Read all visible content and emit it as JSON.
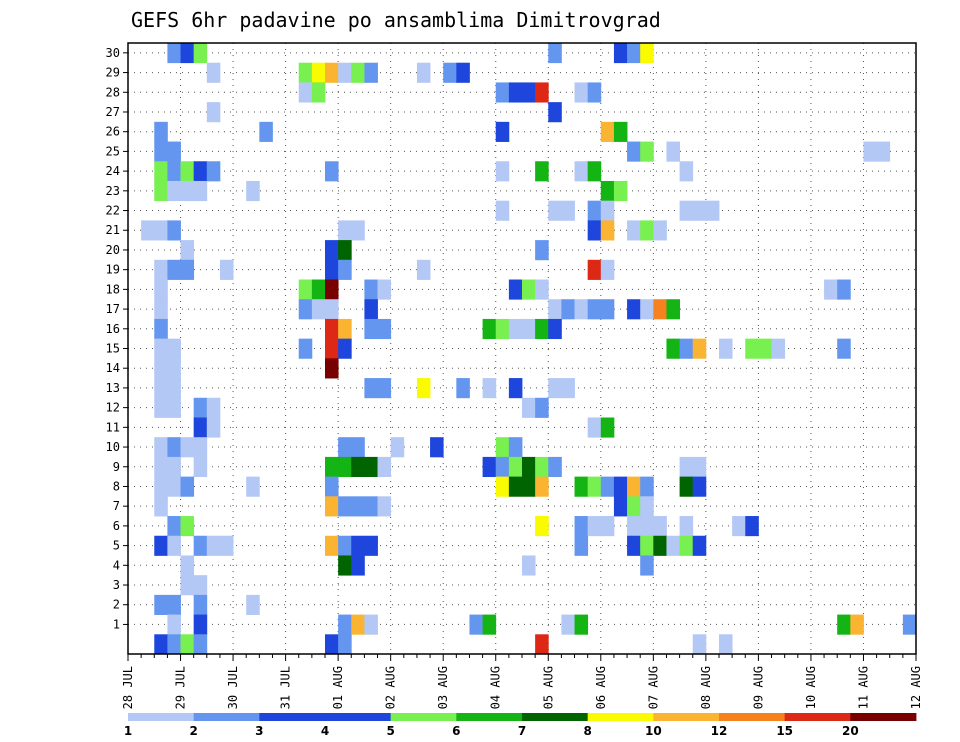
{
  "chart_data": {
    "type": "heatmap",
    "title": "GEFS 6hr padavine po ansamblima Dimitrovgrad",
    "xlabel": "",
    "ylabel": "",
    "x_tick_labels": [
      "28 JUL",
      "29 JUL",
      "30 JUL",
      "31 JUL",
      "01 AUG",
      "02 AUG",
      "03 AUG",
      "04 AUG",
      "05 AUG",
      "06 AUG",
      "07 AUG",
      "08 AUG",
      "09 AUG",
      "10 AUG",
      "11 AUG",
      "12 AUG"
    ],
    "y_tick_labels": [
      "1",
      "2",
      "3",
      "4",
      "5",
      "6",
      "7",
      "8",
      "9",
      "10",
      "11",
      "12",
      "13",
      "14",
      "15",
      "16",
      "17",
      "18",
      "19",
      "20",
      "21",
      "22",
      "23",
      "24",
      "25",
      "26",
      "27",
      "28",
      "29",
      "30"
    ],
    "x_range_steps": [
      0,
      60
    ],
    "y_range_members": [
      0,
      30
    ],
    "grid": true,
    "legend": {
      "placement": "bottom",
      "labels": [
        "1",
        "2",
        "3",
        "4",
        "5",
        "6",
        "7",
        "8",
        "10",
        "12",
        "15",
        "20"
      ],
      "colors": [
        "#b4c8f5",
        "#6496f0",
        "#1e46dc",
        "#1e46dc",
        "#78f050",
        "#14b414",
        "#006400",
        "#fafa00",
        "#fab432",
        "#f5821e",
        "#dc2814",
        "#780000"
      ]
    },
    "cells": [
      {
        "m": 30,
        "t": 3,
        "c": 2
      },
      {
        "m": 30,
        "t": 4,
        "c": 4
      },
      {
        "m": 30,
        "t": 5,
        "c": 5
      },
      {
        "m": 30,
        "t": 32,
        "c": 2
      },
      {
        "m": 30,
        "t": 37,
        "c": 4
      },
      {
        "m": 30,
        "t": 38,
        "c": 2
      },
      {
        "m": 30,
        "t": 39,
        "c": 8
      },
      {
        "m": 29,
        "t": 6,
        "c": 1
      },
      {
        "m": 29,
        "t": 13,
        "c": 5
      },
      {
        "m": 29,
        "t": 14,
        "c": 8
      },
      {
        "m": 29,
        "t": 15,
        "c": 10
      },
      {
        "m": 29,
        "t": 16,
        "c": 1
      },
      {
        "m": 29,
        "t": 17,
        "c": 5
      },
      {
        "m": 29,
        "t": 18,
        "c": 2
      },
      {
        "m": 29,
        "t": 22,
        "c": 1
      },
      {
        "m": 29,
        "t": 24,
        "c": 2
      },
      {
        "m": 29,
        "t": 25,
        "c": 4
      },
      {
        "m": 28,
        "t": 13,
        "c": 1
      },
      {
        "m": 28,
        "t": 14,
        "c": 5
      },
      {
        "m": 28,
        "t": 28,
        "c": 2
      },
      {
        "m": 28,
        "t": 29,
        "c": 4
      },
      {
        "m": 28,
        "t": 30,
        "c": 4
      },
      {
        "m": 28,
        "t": 31,
        "c": 15
      },
      {
        "m": 28,
        "t": 34,
        "c": 1
      },
      {
        "m": 28,
        "t": 35,
        "c": 2
      },
      {
        "m": 27,
        "t": 6,
        "c": 1
      },
      {
        "m": 27,
        "t": 32,
        "c": 4
      },
      {
        "m": 26,
        "t": 2,
        "c": 2
      },
      {
        "m": 26,
        "t": 10,
        "c": 2
      },
      {
        "m": 26,
        "t": 28,
        "c": 4
      },
      {
        "m": 26,
        "t": 36,
        "c": 10
      },
      {
        "m": 26,
        "t": 37,
        "c": 6
      },
      {
        "m": 25,
        "t": 2,
        "c": 2
      },
      {
        "m": 25,
        "t": 3,
        "c": 2
      },
      {
        "m": 25,
        "t": 38,
        "c": 2
      },
      {
        "m": 25,
        "t": 39,
        "c": 5
      },
      {
        "m": 25,
        "t": 41,
        "c": 1
      },
      {
        "m": 25,
        "t": 56,
        "c": 1
      },
      {
        "m": 25,
        "t": 57,
        "c": 1
      },
      {
        "m": 24,
        "t": 2,
        "c": 5
      },
      {
        "m": 24,
        "t": 3,
        "c": 2
      },
      {
        "m": 24,
        "t": 4,
        "c": 5
      },
      {
        "m": 24,
        "t": 5,
        "c": 4
      },
      {
        "m": 24,
        "t": 6,
        "c": 2
      },
      {
        "m": 24,
        "t": 15,
        "c": 2
      },
      {
        "m": 24,
        "t": 28,
        "c": 1
      },
      {
        "m": 24,
        "t": 31,
        "c": 6
      },
      {
        "m": 24,
        "t": 34,
        "c": 1
      },
      {
        "m": 24,
        "t": 35,
        "c": 6
      },
      {
        "m": 24,
        "t": 42,
        "c": 1
      },
      {
        "m": 23,
        "t": 2,
        "c": 5
      },
      {
        "m": 23,
        "t": 3,
        "c": 1
      },
      {
        "m": 23,
        "t": 4,
        "c": 1
      },
      {
        "m": 23,
        "t": 5,
        "c": 1
      },
      {
        "m": 23,
        "t": 9,
        "c": 1
      },
      {
        "m": 23,
        "t": 36,
        "c": 6
      },
      {
        "m": 23,
        "t": 37,
        "c": 5
      },
      {
        "m": 22,
        "t": 28,
        "c": 1
      },
      {
        "m": 22,
        "t": 32,
        "c": 1
      },
      {
        "m": 22,
        "t": 33,
        "c": 1
      },
      {
        "m": 22,
        "t": 35,
        "c": 2
      },
      {
        "m": 22,
        "t": 36,
        "c": 1
      },
      {
        "m": 22,
        "t": 42,
        "c": 1
      },
      {
        "m": 22,
        "t": 43,
        "c": 1
      },
      {
        "m": 22,
        "t": 44,
        "c": 1
      },
      {
        "m": 21,
        "t": 1,
        "c": 1
      },
      {
        "m": 21,
        "t": 2,
        "c": 1
      },
      {
        "m": 21,
        "t": 3,
        "c": 2
      },
      {
        "m": 21,
        "t": 16,
        "c": 1
      },
      {
        "m": 21,
        "t": 17,
        "c": 1
      },
      {
        "m": 21,
        "t": 35,
        "c": 4
      },
      {
        "m": 21,
        "t": 36,
        "c": 10
      },
      {
        "m": 21,
        "t": 38,
        "c": 1
      },
      {
        "m": 21,
        "t": 39,
        "c": 5
      },
      {
        "m": 21,
        "t": 40,
        "c": 1
      },
      {
        "m": 20,
        "t": 4,
        "c": 1
      },
      {
        "m": 20,
        "t": 15,
        "c": 4
      },
      {
        "m": 20,
        "t": 16,
        "c": 7
      },
      {
        "m": 20,
        "t": 31,
        "c": 2
      },
      {
        "m": 19,
        "t": 2,
        "c": 1
      },
      {
        "m": 19,
        "t": 3,
        "c": 2
      },
      {
        "m": 19,
        "t": 4,
        "c": 2
      },
      {
        "m": 19,
        "t": 7,
        "c": 1
      },
      {
        "m": 19,
        "t": 15,
        "c": 4
      },
      {
        "m": 19,
        "t": 16,
        "c": 2
      },
      {
        "m": 19,
        "t": 22,
        "c": 1
      },
      {
        "m": 19,
        "t": 35,
        "c": 15
      },
      {
        "m": 19,
        "t": 36,
        "c": 1
      },
      {
        "m": 18,
        "t": 2,
        "c": 1
      },
      {
        "m": 18,
        "t": 13,
        "c": 5
      },
      {
        "m": 18,
        "t": 14,
        "c": 6
      },
      {
        "m": 18,
        "t": 15,
        "c": 20
      },
      {
        "m": 18,
        "t": 18,
        "c": 2
      },
      {
        "m": 18,
        "t": 19,
        "c": 1
      },
      {
        "m": 18,
        "t": 29,
        "c": 4
      },
      {
        "m": 18,
        "t": 30,
        "c": 5
      },
      {
        "m": 18,
        "t": 31,
        "c": 1
      },
      {
        "m": 18,
        "t": 53,
        "c": 1
      },
      {
        "m": 18,
        "t": 54,
        "c": 2
      },
      {
        "m": 17,
        "t": 2,
        "c": 1
      },
      {
        "m": 17,
        "t": 13,
        "c": 2
      },
      {
        "m": 17,
        "t": 14,
        "c": 1
      },
      {
        "m": 17,
        "t": 15,
        "c": 1
      },
      {
        "m": 17,
        "t": 18,
        "c": 4
      },
      {
        "m": 17,
        "t": 32,
        "c": 1
      },
      {
        "m": 17,
        "t": 33,
        "c": 2
      },
      {
        "m": 17,
        "t": 34,
        "c": 1
      },
      {
        "m": 17,
        "t": 35,
        "c": 2
      },
      {
        "m": 17,
        "t": 36,
        "c": 2
      },
      {
        "m": 17,
        "t": 38,
        "c": 4
      },
      {
        "m": 17,
        "t": 39,
        "c": 1
      },
      {
        "m": 17,
        "t": 40,
        "c": 12
      },
      {
        "m": 17,
        "t": 41,
        "c": 6
      },
      {
        "m": 16,
        "t": 2,
        "c": 2
      },
      {
        "m": 16,
        "t": 15,
        "c": 15
      },
      {
        "m": 16,
        "t": 16,
        "c": 10
      },
      {
        "m": 16,
        "t": 18,
        "c": 2
      },
      {
        "m": 16,
        "t": 19,
        "c": 2
      },
      {
        "m": 16,
        "t": 27,
        "c": 6
      },
      {
        "m": 16,
        "t": 28,
        "c": 5
      },
      {
        "m": 16,
        "t": 29,
        "c": 1
      },
      {
        "m": 16,
        "t": 30,
        "c": 1
      },
      {
        "m": 16,
        "t": 31,
        "c": 6
      },
      {
        "m": 16,
        "t": 32,
        "c": 4
      },
      {
        "m": 15,
        "t": 2,
        "c": 1
      },
      {
        "m": 15,
        "t": 3,
        "c": 1
      },
      {
        "m": 15,
        "t": 13,
        "c": 2
      },
      {
        "m": 15,
        "t": 15,
        "c": 15
      },
      {
        "m": 15,
        "t": 16,
        "c": 4
      },
      {
        "m": 15,
        "t": 41,
        "c": 6
      },
      {
        "m": 15,
        "t": 42,
        "c": 2
      },
      {
        "m": 15,
        "t": 43,
        "c": 10
      },
      {
        "m": 15,
        "t": 45,
        "c": 1
      },
      {
        "m": 15,
        "t": 47,
        "c": 5
      },
      {
        "m": 15,
        "t": 48,
        "c": 5
      },
      {
        "m": 15,
        "t": 49,
        "c": 1
      },
      {
        "m": 15,
        "t": 54,
        "c": 2
      },
      {
        "m": 14,
        "t": 2,
        "c": 1
      },
      {
        "m": 14,
        "t": 3,
        "c": 1
      },
      {
        "m": 14,
        "t": 15,
        "c": 20
      },
      {
        "m": 13,
        "t": 2,
        "c": 1
      },
      {
        "m": 13,
        "t": 3,
        "c": 1
      },
      {
        "m": 13,
        "t": 18,
        "c": 2
      },
      {
        "m": 13,
        "t": 19,
        "c": 2
      },
      {
        "m": 13,
        "t": 22,
        "c": 8
      },
      {
        "m": 13,
        "t": 25,
        "c": 2
      },
      {
        "m": 13,
        "t": 27,
        "c": 1
      },
      {
        "m": 13,
        "t": 29,
        "c": 4
      },
      {
        "m": 13,
        "t": 32,
        "c": 1
      },
      {
        "m": 13,
        "t": 33,
        "c": 1
      },
      {
        "m": 12,
        "t": 2,
        "c": 1
      },
      {
        "m": 12,
        "t": 3,
        "c": 1
      },
      {
        "m": 12,
        "t": 5,
        "c": 2
      },
      {
        "m": 12,
        "t": 6,
        "c": 1
      },
      {
        "m": 12,
        "t": 30,
        "c": 1
      },
      {
        "m": 12,
        "t": 31,
        "c": 2
      },
      {
        "m": 11,
        "t": 5,
        "c": 4
      },
      {
        "m": 11,
        "t": 6,
        "c": 1
      },
      {
        "m": 11,
        "t": 35,
        "c": 1
      },
      {
        "m": 11,
        "t": 36,
        "c": 6
      },
      {
        "m": 10,
        "t": 2,
        "c": 1
      },
      {
        "m": 10,
        "t": 3,
        "c": 2
      },
      {
        "m": 10,
        "t": 4,
        "c": 1
      },
      {
        "m": 10,
        "t": 5,
        "c": 1
      },
      {
        "m": 10,
        "t": 16,
        "c": 2
      },
      {
        "m": 10,
        "t": 17,
        "c": 2
      },
      {
        "m": 10,
        "t": 20,
        "c": 1
      },
      {
        "m": 10,
        "t": 23,
        "c": 4
      },
      {
        "m": 10,
        "t": 28,
        "c": 5
      },
      {
        "m": 10,
        "t": 29,
        "c": 2
      },
      {
        "m": 9,
        "t": 2,
        "c": 1
      },
      {
        "m": 9,
        "t": 3,
        "c": 1
      },
      {
        "m": 9,
        "t": 5,
        "c": 1
      },
      {
        "m": 9,
        "t": 15,
        "c": 6
      },
      {
        "m": 9,
        "t": 16,
        "c": 6
      },
      {
        "m": 9,
        "t": 17,
        "c": 7
      },
      {
        "m": 9,
        "t": 18,
        "c": 7
      },
      {
        "m": 9,
        "t": 19,
        "c": 1
      },
      {
        "m": 9,
        "t": 27,
        "c": 4
      },
      {
        "m": 9,
        "t": 28,
        "c": 2
      },
      {
        "m": 9,
        "t": 29,
        "c": 5
      },
      {
        "m": 9,
        "t": 30,
        "c": 7
      },
      {
        "m": 9,
        "t": 31,
        "c": 5
      },
      {
        "m": 9,
        "t": 32,
        "c": 2
      },
      {
        "m": 9,
        "t": 42,
        "c": 1
      },
      {
        "m": 9,
        "t": 43,
        "c": 1
      },
      {
        "m": 8,
        "t": 2,
        "c": 1
      },
      {
        "m": 8,
        "t": 3,
        "c": 1
      },
      {
        "m": 8,
        "t": 4,
        "c": 2
      },
      {
        "m": 8,
        "t": 9,
        "c": 1
      },
      {
        "m": 8,
        "t": 15,
        "c": 2
      },
      {
        "m": 8,
        "t": 28,
        "c": 8
      },
      {
        "m": 8,
        "t": 29,
        "c": 7
      },
      {
        "m": 8,
        "t": 30,
        "c": 7
      },
      {
        "m": 8,
        "t": 31,
        "c": 10
      },
      {
        "m": 8,
        "t": 34,
        "c": 6
      },
      {
        "m": 8,
        "t": 35,
        "c": 5
      },
      {
        "m": 8,
        "t": 36,
        "c": 2
      },
      {
        "m": 8,
        "t": 37,
        "c": 4
      },
      {
        "m": 8,
        "t": 38,
        "c": 10
      },
      {
        "m": 8,
        "t": 39,
        "c": 2
      },
      {
        "m": 8,
        "t": 42,
        "c": 7
      },
      {
        "m": 8,
        "t": 43,
        "c": 4
      },
      {
        "m": 7,
        "t": 2,
        "c": 1
      },
      {
        "m": 7,
        "t": 15,
        "c": 10
      },
      {
        "m": 7,
        "t": 16,
        "c": 2
      },
      {
        "m": 7,
        "t": 17,
        "c": 2
      },
      {
        "m": 7,
        "t": 18,
        "c": 2
      },
      {
        "m": 7,
        "t": 19,
        "c": 1
      },
      {
        "m": 7,
        "t": 37,
        "c": 4
      },
      {
        "m": 7,
        "t": 38,
        "c": 5
      },
      {
        "m": 7,
        "t": 39,
        "c": 1
      },
      {
        "m": 6,
        "t": 3,
        "c": 2
      },
      {
        "m": 6,
        "t": 4,
        "c": 5
      },
      {
        "m": 6,
        "t": 31,
        "c": 8
      },
      {
        "m": 6,
        "t": 34,
        "c": 2
      },
      {
        "m": 6,
        "t": 35,
        "c": 1
      },
      {
        "m": 6,
        "t": 36,
        "c": 1
      },
      {
        "m": 6,
        "t": 38,
        "c": 1
      },
      {
        "m": 6,
        "t": 39,
        "c": 1
      },
      {
        "m": 6,
        "t": 40,
        "c": 1
      },
      {
        "m": 6,
        "t": 42,
        "c": 1
      },
      {
        "m": 6,
        "t": 46,
        "c": 1
      },
      {
        "m": 6,
        "t": 47,
        "c": 4
      },
      {
        "m": 5,
        "t": 2,
        "c": 4
      },
      {
        "m": 5,
        "t": 3,
        "c": 1
      },
      {
        "m": 5,
        "t": 5,
        "c": 2
      },
      {
        "m": 5,
        "t": 6,
        "c": 1
      },
      {
        "m": 5,
        "t": 7,
        "c": 1
      },
      {
        "m": 5,
        "t": 15,
        "c": 10
      },
      {
        "m": 5,
        "t": 16,
        "c": 2
      },
      {
        "m": 5,
        "t": 17,
        "c": 4
      },
      {
        "m": 5,
        "t": 18,
        "c": 4
      },
      {
        "m": 5,
        "t": 34,
        "c": 2
      },
      {
        "m": 5,
        "t": 38,
        "c": 4
      },
      {
        "m": 5,
        "t": 39,
        "c": 5
      },
      {
        "m": 5,
        "t": 40,
        "c": 7
      },
      {
        "m": 5,
        "t": 41,
        "c": 1
      },
      {
        "m": 5,
        "t": 42,
        "c": 5
      },
      {
        "m": 5,
        "t": 43,
        "c": 4
      },
      {
        "m": 4,
        "t": 4,
        "c": 1
      },
      {
        "m": 4,
        "t": 16,
        "c": 7
      },
      {
        "m": 4,
        "t": 17,
        "c": 4
      },
      {
        "m": 4,
        "t": 30,
        "c": 1
      },
      {
        "m": 4,
        "t": 39,
        "c": 2
      },
      {
        "m": 3,
        "t": 4,
        "c": 1
      },
      {
        "m": 3,
        "t": 5,
        "c": 1
      },
      {
        "m": 2,
        "t": 2,
        "c": 2
      },
      {
        "m": 2,
        "t": 3,
        "c": 2
      },
      {
        "m": 2,
        "t": 5,
        "c": 2
      },
      {
        "m": 2,
        "t": 9,
        "c": 1
      },
      {
        "m": 1,
        "t": 3,
        "c": 1
      },
      {
        "m": 1,
        "t": 5,
        "c": 4
      },
      {
        "m": 1,
        "t": 16,
        "c": 2
      },
      {
        "m": 1,
        "t": 17,
        "c": 10
      },
      {
        "m": 1,
        "t": 18,
        "c": 1
      },
      {
        "m": 1,
        "t": 26,
        "c": 2
      },
      {
        "m": 1,
        "t": 27,
        "c": 6
      },
      {
        "m": 1,
        "t": 33,
        "c": 1
      },
      {
        "m": 1,
        "t": 34,
        "c": 6
      },
      {
        "m": 1,
        "t": 54,
        "c": 6
      },
      {
        "m": 1,
        "t": 55,
        "c": 10
      },
      {
        "m": 1,
        "t": 59,
        "c": 2
      },
      {
        "m": 0,
        "t": 2,
        "c": 4
      },
      {
        "m": 0,
        "t": 3,
        "c": 2
      },
      {
        "m": 0,
        "t": 4,
        "c": 5
      },
      {
        "m": 0,
        "t": 5,
        "c": 2
      },
      {
        "m": 0,
        "t": 15,
        "c": 4
      },
      {
        "m": 0,
        "t": 16,
        "c": 2
      },
      {
        "m": 0,
        "t": 31,
        "c": 15
      },
      {
        "m": 0,
        "t": 43,
        "c": 1
      },
      {
        "m": 0,
        "t": 45,
        "c": 1
      }
    ]
  }
}
